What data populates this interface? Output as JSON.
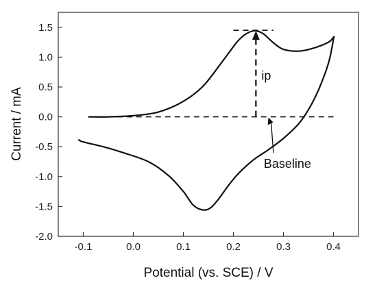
{
  "chart_data": {
    "type": "line",
    "xlabel": "Potential (vs. SCE) / V",
    "ylabel": "Current / mA",
    "xlim": [
      -0.15,
      0.45
    ],
    "ylim": [
      -2.0,
      1.75
    ],
    "xticks": [
      -0.1,
      0.0,
      0.1,
      0.2,
      0.3,
      0.4
    ],
    "xtick_labels": [
      "-0.1",
      "0.0",
      "0.1",
      "0.2",
      "0.3",
      "0.4"
    ],
    "yticks": [
      -2.0,
      -1.5,
      -1.0,
      -0.5,
      0.0,
      0.5,
      1.0,
      1.5
    ],
    "ytick_labels": [
      "-2.0",
      "-1.5",
      "-1.0",
      "-0.5",
      "0.0",
      "0.5",
      "1.0",
      "1.5"
    ],
    "grid": false,
    "series": [
      {
        "x": [
          -0.09,
          -0.05,
          0.0,
          0.05,
          0.1,
          0.14,
          0.18,
          0.21,
          0.23,
          0.245,
          0.26,
          0.28,
          0.3,
          0.33,
          0.36,
          0.39,
          0.4,
          0.4,
          0.39,
          0.37,
          0.35,
          0.33,
          0.3,
          0.27,
          0.24,
          0.21,
          0.19,
          0.17,
          0.155,
          0.14,
          0.12,
          0.1,
          0.07,
          0.03,
          -0.02,
          -0.06,
          -0.1,
          -0.11
        ],
        "y": [
          0.0,
          0.0,
          0.02,
          0.08,
          0.26,
          0.52,
          0.95,
          1.28,
          1.41,
          1.44,
          1.39,
          1.24,
          1.13,
          1.1,
          1.15,
          1.25,
          1.33,
          1.3,
          0.9,
          0.45,
          0.12,
          -0.12,
          -0.36,
          -0.55,
          -0.72,
          -0.95,
          -1.15,
          -1.38,
          -1.52,
          -1.56,
          -1.48,
          -1.25,
          -0.98,
          -0.75,
          -0.6,
          -0.5,
          -0.42,
          -0.38
        ]
      }
    ],
    "annotations": {
      "peak_label": "ip",
      "baseline_label": "Baseline",
      "peak": [
        0.245,
        1.45
      ],
      "peak_line_x": [
        0.2,
        0.28
      ],
      "baseline_y": 0.0,
      "baseline_x": [
        -0.09,
        0.4
      ],
      "baseline_arrow_from": [
        0.28,
        -0.6
      ],
      "baseline_arrow_to": [
        0.27,
        -0.01
      ]
    }
  }
}
